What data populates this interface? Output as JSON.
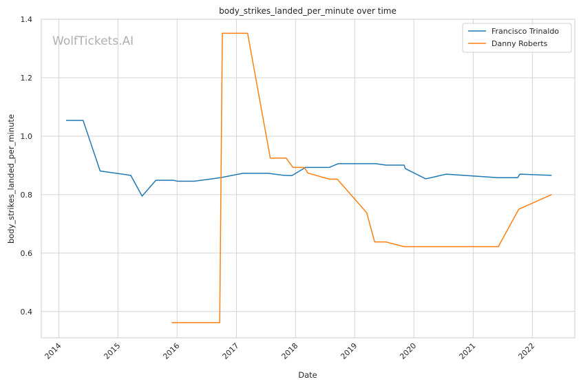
{
  "watermark": "WolfTickets.AI",
  "chart_data": {
    "type": "line",
    "title": "body_strikes_landed_per_minute over time",
    "xlabel": "Date",
    "ylabel": "body_strikes_landed_per_minute",
    "xlim": [
      "2013-09-15",
      "2022-09-20"
    ],
    "ylim": [
      0.31,
      1.4
    ],
    "x_ticks": [
      "2014",
      "2015",
      "2016",
      "2017",
      "2018",
      "2019",
      "2020",
      "2021",
      "2022"
    ],
    "y_ticks": [
      "0.4",
      "0.6",
      "0.8",
      "1.0",
      "1.2",
      "1.4"
    ],
    "grid": true,
    "legend_position": "top-right",
    "series": [
      {
        "name": "Francisco Trinaldo",
        "color": "#1f77b4",
        "points": [
          [
            "2014-02-15",
            1.054
          ],
          [
            "2014-05-31",
            1.054
          ],
          [
            "2014-09-13",
            0.881
          ],
          [
            "2015-03-21",
            0.866
          ],
          [
            "2015-05-30",
            0.795
          ],
          [
            "2015-08-23",
            0.849
          ],
          [
            "2015-12-10",
            0.849
          ],
          [
            "2016-01-02",
            0.846
          ],
          [
            "2016-04-16",
            0.846
          ],
          [
            "2016-09-24",
            0.858
          ],
          [
            "2017-02-11",
            0.873
          ],
          [
            "2017-07-16",
            0.873
          ],
          [
            "2017-10-21",
            0.866
          ],
          [
            "2017-12-09",
            0.865
          ],
          [
            "2018-03-03",
            0.893
          ],
          [
            "2018-07-28",
            0.893
          ],
          [
            "2018-09-22",
            0.906
          ],
          [
            "2019-05-11",
            0.906
          ],
          [
            "2019-07-13",
            0.901
          ],
          [
            "2019-11-02",
            0.901
          ],
          [
            "2019-11-09",
            0.889
          ],
          [
            "2020-03-14",
            0.854
          ],
          [
            "2020-07-19",
            0.87
          ],
          [
            "2021-06-05",
            0.858
          ],
          [
            "2021-10-02",
            0.858
          ],
          [
            "2021-10-16",
            0.87
          ],
          [
            "2022-04-30",
            0.866
          ]
        ]
      },
      {
        "name": "Danny Roberts",
        "color": "#ff7f0e",
        "points": [
          [
            "2015-11-28",
            0.362
          ],
          [
            "2016-09-20",
            0.362
          ],
          [
            "2016-10-06",
            1.352
          ],
          [
            "2017-03-11",
            1.352
          ],
          [
            "2017-07-29",
            0.925
          ],
          [
            "2017-11-04",
            0.925
          ],
          [
            "2017-12-16",
            0.893
          ],
          [
            "2018-02-24",
            0.893
          ],
          [
            "2018-03-17",
            0.874
          ],
          [
            "2018-07-28",
            0.853
          ],
          [
            "2018-09-15",
            0.853
          ],
          [
            "2019-03-16",
            0.738
          ],
          [
            "2019-05-04",
            0.638
          ],
          [
            "2019-07-13",
            0.638
          ],
          [
            "2019-11-02",
            0.622
          ],
          [
            "2021-06-05",
            0.622
          ],
          [
            "2021-10-09",
            0.75
          ],
          [
            "2022-04-30",
            0.8
          ]
        ]
      }
    ]
  }
}
